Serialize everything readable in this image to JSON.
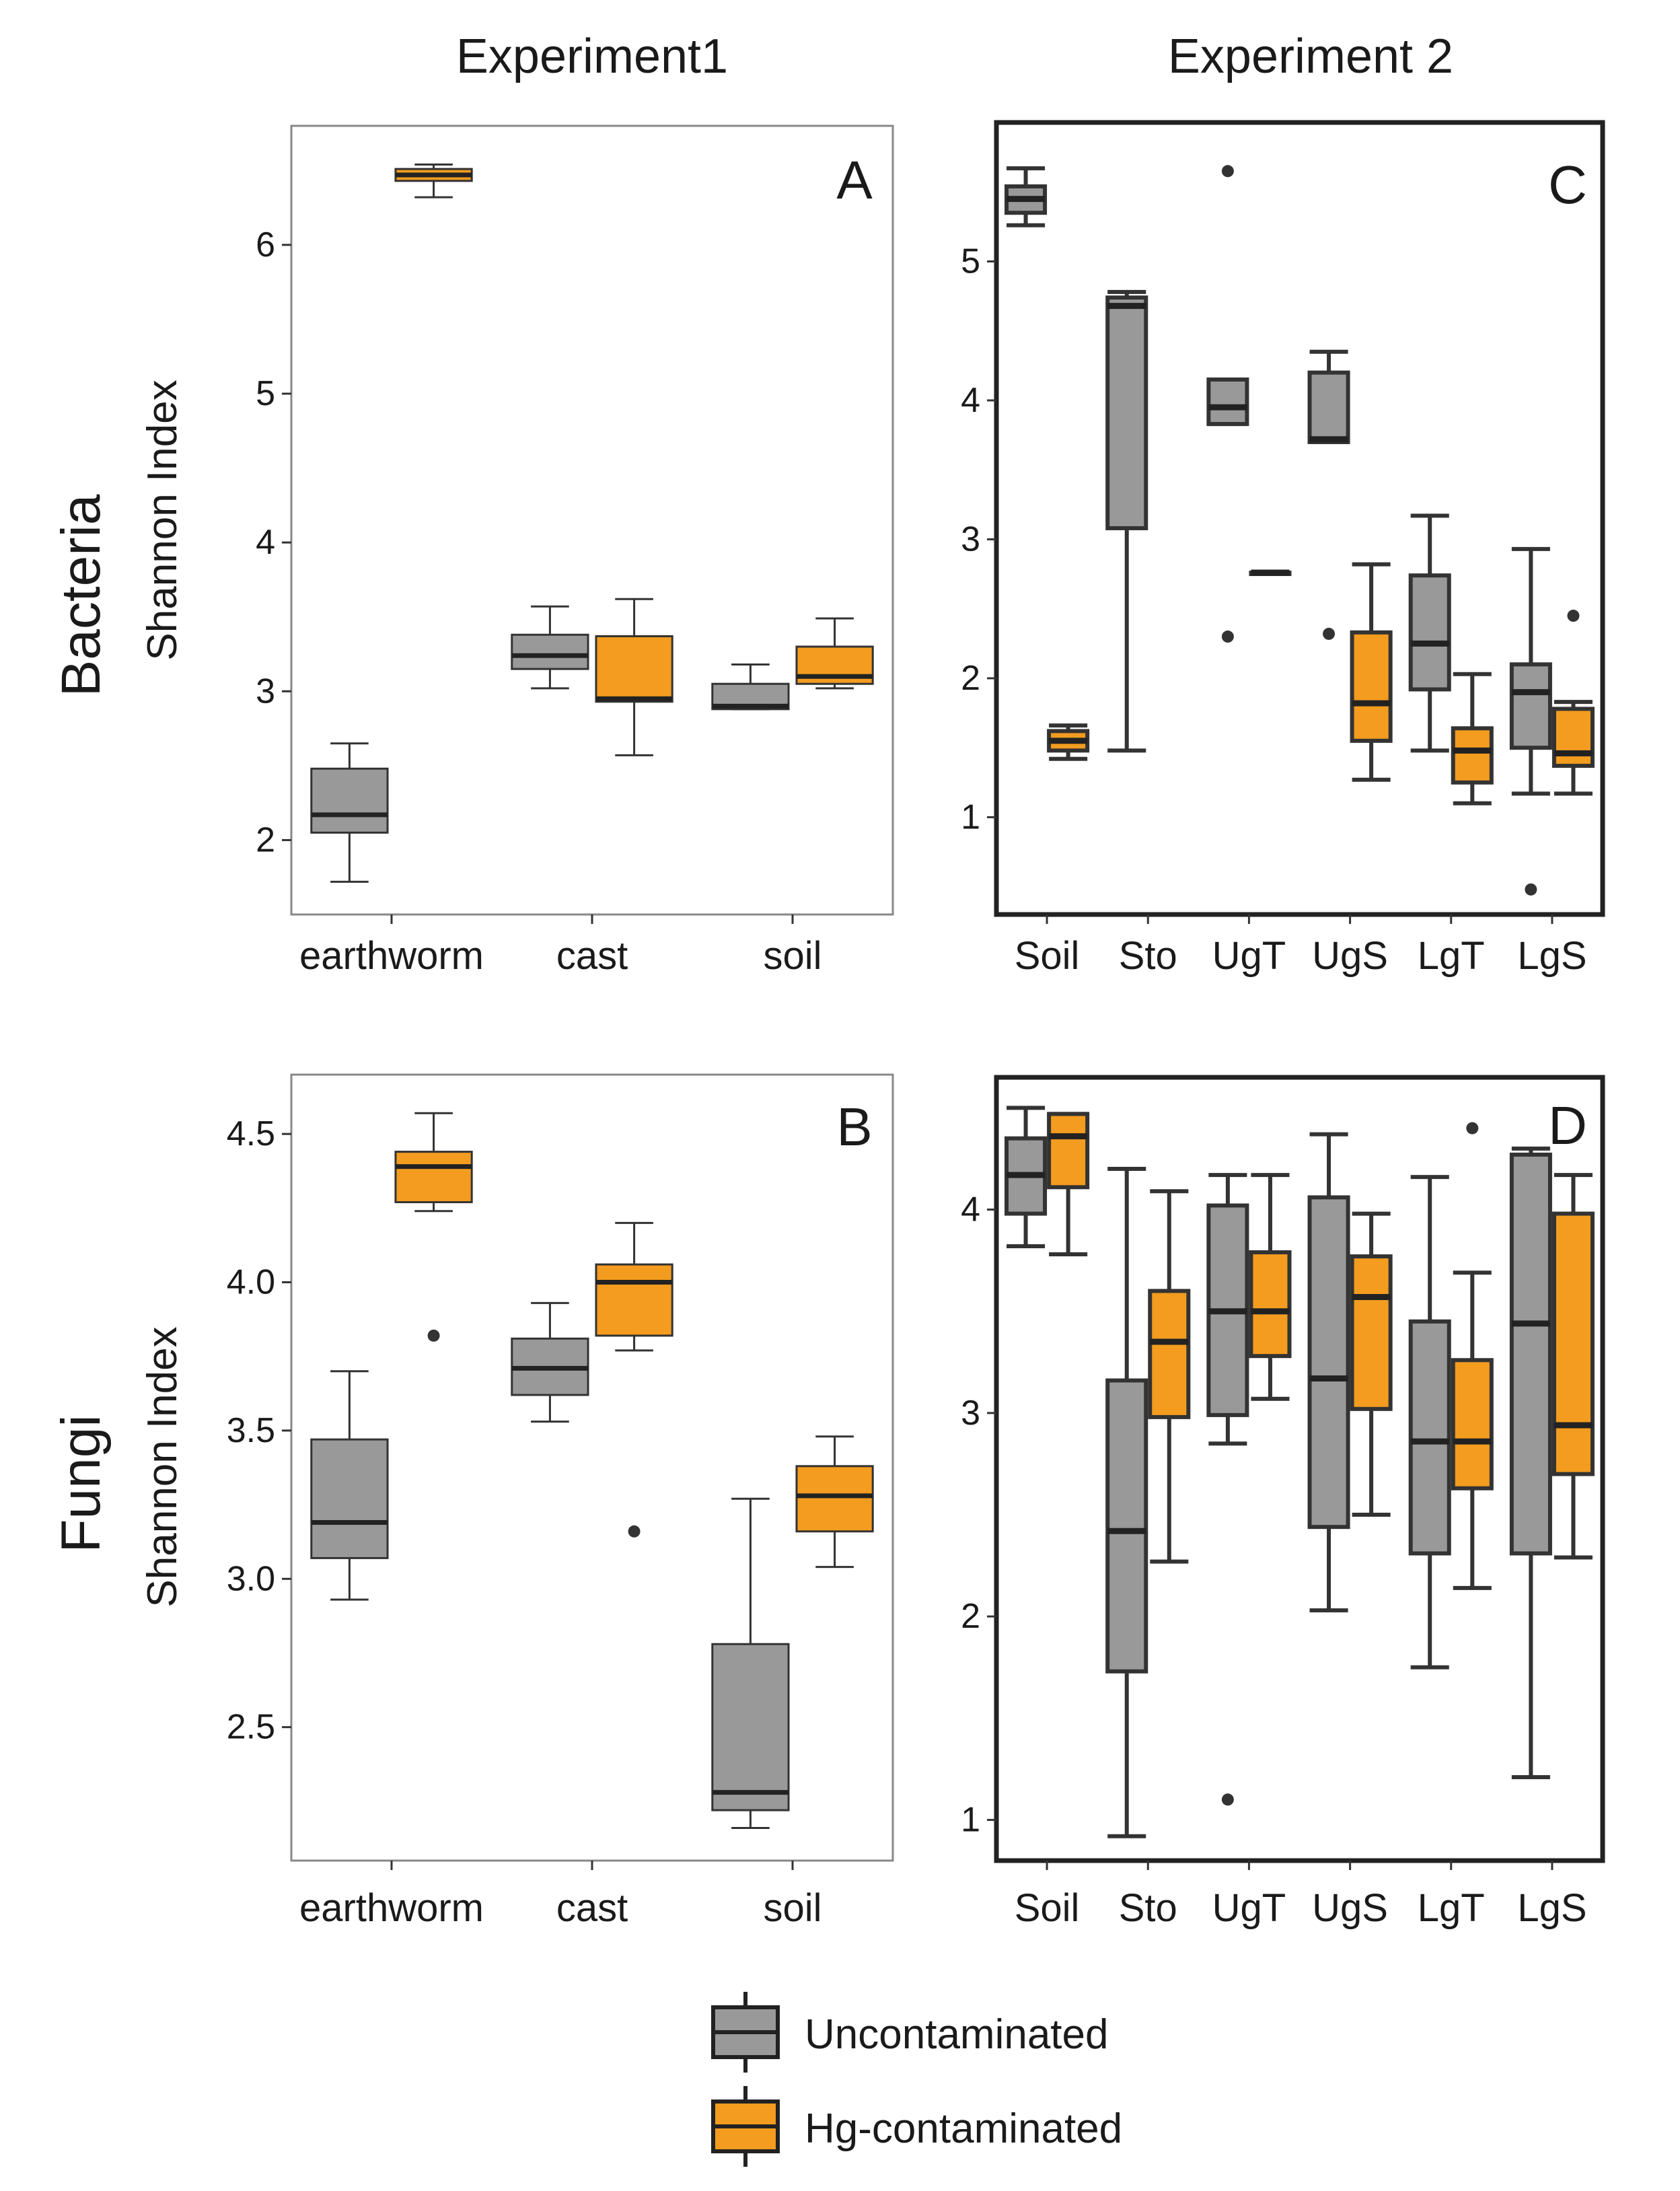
{
  "columns": [
    "Experiment1",
    "Experiment 2"
  ],
  "rows": [
    "Bacteria",
    "Fungi"
  ],
  "legend": {
    "items": [
      {
        "name": "Uncontaminated",
        "color": "#999999"
      },
      {
        "name": "Hg-contaminated",
        "color": "#f39c1f"
      }
    ]
  },
  "chart_data": [
    {
      "id": "A",
      "type": "box",
      "panel_label": "A",
      "ylabel": "Shannon Index",
      "ylim": [
        1.5,
        6.8
      ],
      "yticks": [
        2,
        3,
        4,
        5,
        6
      ],
      "categories": [
        "earthworm",
        "cast",
        "soil"
      ],
      "series": [
        {
          "name": "Uncontaminated",
          "boxes": [
            {
              "lo": 1.72,
              "q1": 2.05,
              "med": 2.17,
              "q3": 2.48,
              "hi": 2.65,
              "outliers": []
            },
            {
              "lo": 3.02,
              "q1": 3.15,
              "med": 3.24,
              "q3": 3.38,
              "hi": 3.57,
              "outliers": []
            },
            {
              "lo": 2.88,
              "q1": 2.88,
              "med": 2.9,
              "q3": 3.05,
              "hi": 3.18,
              "outliers": []
            }
          ]
        },
        {
          "name": "Hg-contaminated",
          "boxes": [
            {
              "lo": 6.32,
              "q1": 6.43,
              "med": 6.47,
              "q3": 6.51,
              "hi": 6.54,
              "outliers": []
            },
            {
              "lo": 2.57,
              "q1": 2.93,
              "med": 2.95,
              "q3": 3.37,
              "hi": 3.62,
              "outliers": []
            },
            {
              "lo": 3.02,
              "q1": 3.05,
              "med": 3.1,
              "q3": 3.3,
              "hi": 3.49,
              "outliers": []
            }
          ]
        }
      ]
    },
    {
      "id": "C",
      "type": "box",
      "panel_label": "C",
      "ylabel": "",
      "ylim": [
        0.3,
        6.0
      ],
      "yticks": [
        1,
        2,
        3,
        4,
        5
      ],
      "categories": [
        "Soil",
        "Sto",
        "UgT",
        "UgS",
        "LgT",
        "LgS"
      ],
      "series": [
        {
          "name": "Uncontaminated",
          "boxes": [
            {
              "lo": 5.26,
              "q1": 5.35,
              "med": 5.45,
              "q3": 5.54,
              "hi": 5.67,
              "outliers": []
            },
            {
              "lo": 1.48,
              "q1": 3.08,
              "med": 4.68,
              "q3": 4.74,
              "hi": 4.78,
              "outliers": []
            },
            {
              "lo": 3.83,
              "q1": 3.83,
              "med": 3.95,
              "q3": 4.15,
              "hi": 4.15,
              "outliers": [
                5.65,
                2.3
              ]
            },
            {
              "lo": 3.7,
              "q1": 3.7,
              "med": 3.72,
              "q3": 4.2,
              "hi": 4.35,
              "outliers": [
                2.32
              ]
            },
            {
              "lo": 1.48,
              "q1": 1.92,
              "med": 2.25,
              "q3": 2.74,
              "hi": 3.17,
              "outliers": []
            },
            {
              "lo": 1.17,
              "q1": 1.5,
              "med": 1.9,
              "q3": 2.1,
              "hi": 2.93,
              "outliers": [
                0.48
              ]
            }
          ]
        },
        {
          "name": "Hg-contaminated",
          "boxes": [
            {
              "lo": 1.42,
              "q1": 1.48,
              "med": 1.55,
              "q3": 1.62,
              "hi": 1.66,
              "outliers": []
            },
            {
              "lo": null,
              "q1": null,
              "med": null,
              "q3": null,
              "hi": null,
              "outliers": []
            },
            {
              "lo": 2.76,
              "q1": 2.76,
              "med": 2.76,
              "q3": 2.76,
              "hi": 2.76,
              "outliers": []
            },
            {
              "lo": 1.27,
              "q1": 1.55,
              "med": 1.82,
              "q3": 2.33,
              "hi": 2.82,
              "outliers": []
            },
            {
              "lo": 1.1,
              "q1": 1.25,
              "med": 1.48,
              "q3": 1.64,
              "hi": 2.03,
              "outliers": []
            },
            {
              "lo": 1.17,
              "q1": 1.37,
              "med": 1.46,
              "q3": 1.78,
              "hi": 1.83,
              "outliers": [
                2.45
              ]
            }
          ]
        }
      ]
    },
    {
      "id": "B",
      "type": "box",
      "panel_label": "B",
      "ylabel": "Shannon Index",
      "ylim": [
        2.05,
        4.7
      ],
      "yticks": [
        2.5,
        3.0,
        3.5,
        4.0,
        4.5
      ],
      "categories": [
        "earthworm",
        "cast",
        "soil"
      ],
      "series": [
        {
          "name": "Uncontaminated",
          "boxes": [
            {
              "lo": 2.93,
              "q1": 3.07,
              "med": 3.19,
              "q3": 3.47,
              "hi": 3.7,
              "outliers": []
            },
            {
              "lo": 3.53,
              "q1": 3.62,
              "med": 3.71,
              "q3": 3.81,
              "hi": 3.93,
              "outliers": []
            },
            {
              "lo": 2.16,
              "q1": 2.22,
              "med": 2.28,
              "q3": 2.78,
              "hi": 3.27,
              "outliers": []
            }
          ]
        },
        {
          "name": "Hg-contaminated",
          "boxes": [
            {
              "lo": 4.24,
              "q1": 4.27,
              "med": 4.39,
              "q3": 4.44,
              "hi": 4.57,
              "outliers": [
                3.82
              ]
            },
            {
              "lo": 3.77,
              "q1": 3.82,
              "med": 4.0,
              "q3": 4.06,
              "hi": 4.2,
              "outliers": [
                3.16
              ]
            },
            {
              "lo": 3.04,
              "q1": 3.16,
              "med": 3.28,
              "q3": 3.38,
              "hi": 3.48,
              "outliers": []
            }
          ]
        }
      ]
    },
    {
      "id": "D",
      "type": "box",
      "panel_label": "D",
      "ylabel": "",
      "ylim": [
        0.8,
        4.65
      ],
      "yticks": [
        1,
        2,
        3,
        4
      ],
      "categories": [
        "Soil",
        "Sto",
        "UgT",
        "UgS",
        "LgT",
        "LgS"
      ],
      "series": [
        {
          "name": "Uncontaminated",
          "boxes": [
            {
              "lo": 3.82,
              "q1": 3.98,
              "med": 4.17,
              "q3": 4.35,
              "hi": 4.5,
              "outliers": []
            },
            {
              "lo": 0.92,
              "q1": 1.73,
              "med": 2.42,
              "q3": 3.16,
              "hi": 4.2,
              "outliers": []
            },
            {
              "lo": 2.85,
              "q1": 2.99,
              "med": 3.5,
              "q3": 4.02,
              "hi": 4.17,
              "outliers": [
                1.1
              ]
            },
            {
              "lo": 2.03,
              "q1": 2.44,
              "med": 3.17,
              "q3": 4.06,
              "hi": 4.37,
              "outliers": []
            },
            {
              "lo": 1.75,
              "q1": 2.31,
              "med": 2.86,
              "q3": 3.45,
              "hi": 4.16,
              "outliers": []
            },
            {
              "lo": 1.21,
              "q1": 2.31,
              "med": 3.44,
              "q3": 4.27,
              "hi": 4.3,
              "outliers": []
            }
          ]
        },
        {
          "name": "Hg-contaminated",
          "boxes": [
            {
              "lo": 3.78,
              "q1": 4.11,
              "med": 4.36,
              "q3": 4.47,
              "hi": 4.47,
              "outliers": []
            },
            {
              "lo": 2.27,
              "q1": 2.98,
              "med": 3.35,
              "q3": 3.6,
              "hi": 4.09,
              "outliers": []
            },
            {
              "lo": 3.07,
              "q1": 3.28,
              "med": 3.5,
              "q3": 3.79,
              "hi": 4.17,
              "outliers": []
            },
            {
              "lo": 2.5,
              "q1": 3.02,
              "med": 3.57,
              "q3": 3.77,
              "hi": 3.98,
              "outliers": []
            },
            {
              "lo": 2.14,
              "q1": 2.63,
              "med": 2.86,
              "q3": 3.26,
              "hi": 3.69,
              "outliers": [
                4.4
              ]
            },
            {
              "lo": 2.29,
              "q1": 2.7,
              "med": 2.94,
              "q3": 3.98,
              "hi": 4.17,
              "outliers": []
            }
          ]
        }
      ]
    }
  ]
}
